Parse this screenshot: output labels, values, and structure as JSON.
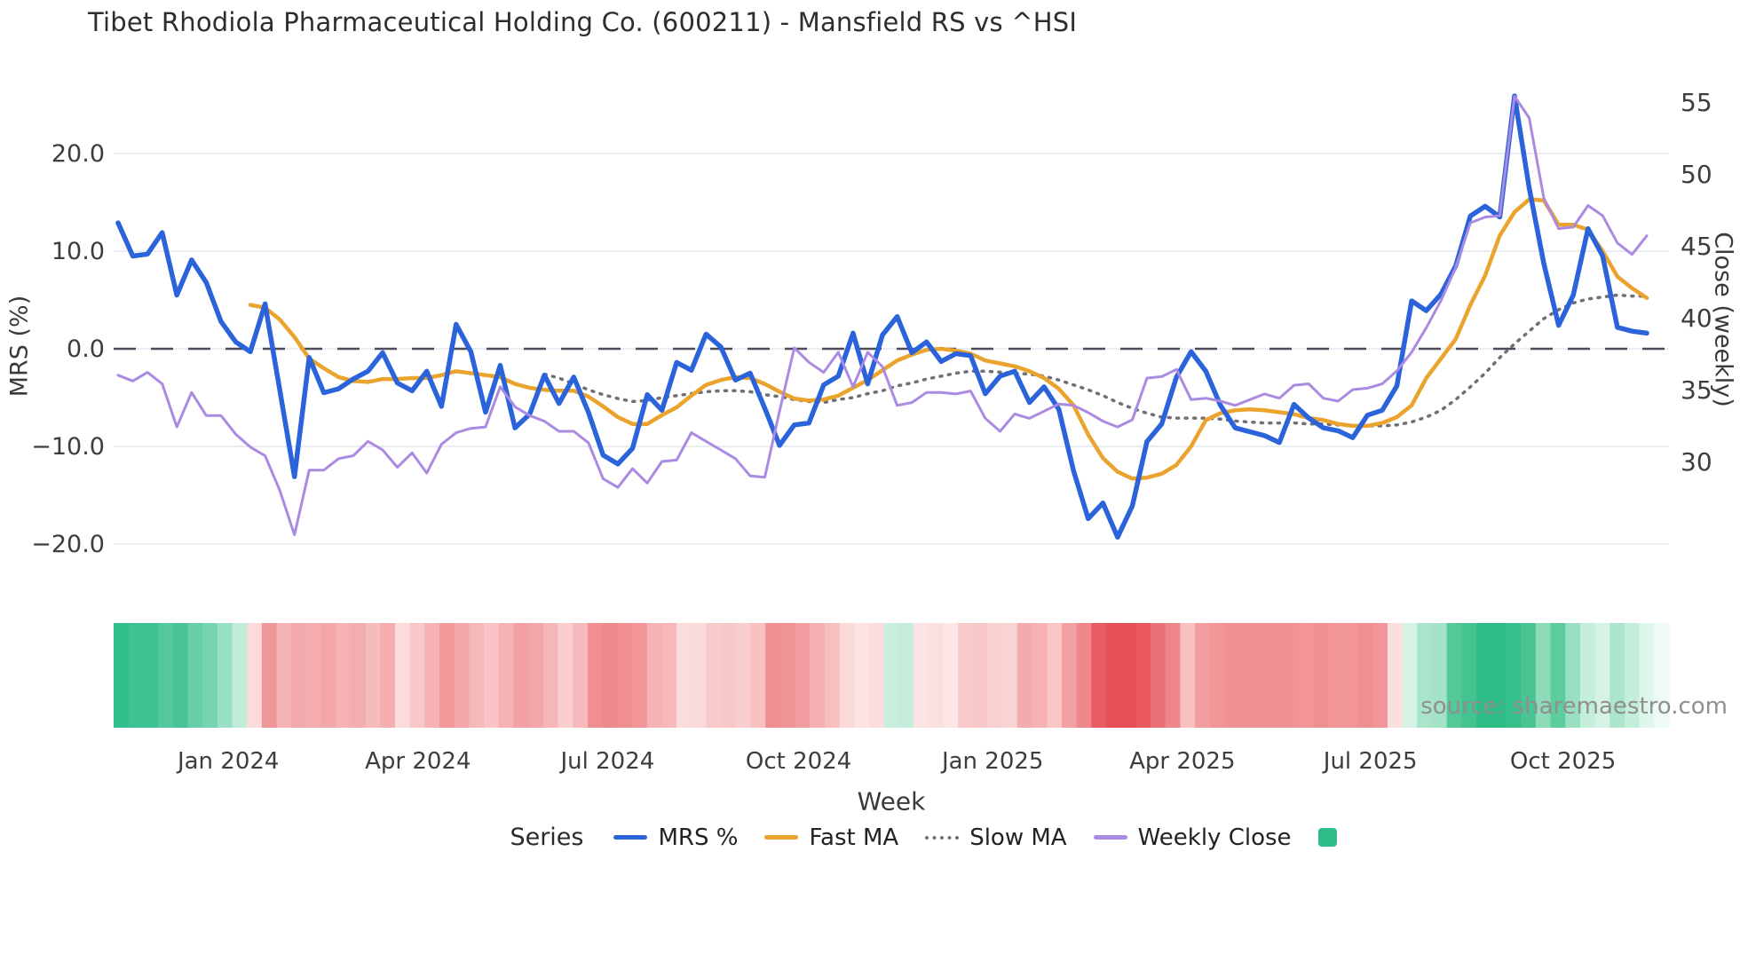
{
  "title": "Tibet Rhodiola Pharmaceutical Holding Co. (600211) - Mansfield RS vs ^HSI",
  "axes": {
    "left_label": "MRS (%)",
    "right_label": "Close (weekly)",
    "x_label": "Week"
  },
  "legend": {
    "series_label": "Series",
    "items": [
      {
        "label": "MRS %",
        "color": "#2b63da",
        "swatch": "line"
      },
      {
        "label": "Fast MA",
        "color": "#eaa42e",
        "swatch": "line"
      },
      {
        "label": "Slow MA",
        "color": "#73737d",
        "swatch": "dotted"
      },
      {
        "label": "Weekly Close",
        "color": "#ab8ae2",
        "swatch": "line"
      },
      {
        "label": "",
        "color": "#2ebd86",
        "swatch": "square"
      }
    ]
  },
  "source": "source: sharemaestro.com",
  "colors": {
    "grid": "#e9edf1",
    "zero_line": "#4b4b57",
    "tick_text": "#3d3d3d",
    "background": "#ffffff"
  },
  "chart_data": {
    "type": "line",
    "x_unit": "week",
    "n_weeks": 105,
    "x_tick_labels": [
      "Jan 2024",
      "Apr 2024",
      "Jul 2024",
      "Oct 2024",
      "Jan 2025",
      "Apr 2025",
      "Jul 2025",
      "Oct 2025"
    ],
    "x_tick_weeks": [
      7.5,
      20.4,
      33.3,
      46.3,
      59.5,
      72.4,
      85.2,
      98.3
    ],
    "left_axis": {
      "label": "MRS (%)",
      "ticks": [
        20,
        10,
        0,
        -10,
        -20
      ],
      "tick_labels": [
        "20.0",
        "10.0",
        "0.0",
        "−10.0",
        "−20.0"
      ],
      "range": [
        -24.3,
        28.9
      ],
      "zero_line": 0
    },
    "right_axis": {
      "label": "Close (weekly)",
      "ticks": [
        55,
        50,
        45,
        40,
        35,
        30
      ],
      "tick_labels": [
        "55",
        "50",
        "45",
        "40",
        "35",
        "30"
      ],
      "range": [
        21.4,
        57.5
      ]
    },
    "series": [
      {
        "name": "Slow MA",
        "axis": "left",
        "color": "#6f6f78",
        "width": 3.5,
        "dash": "2 7.5",
        "start_week": 29,
        "values": [
          -2.6,
          -3.0,
          -3.6,
          -4.2,
          -4.7,
          -5.1,
          -5.4,
          -5.3,
          -5.0,
          -4.8,
          -4.6,
          -4.4,
          -4.3,
          -4.3,
          -4.4,
          -4.7,
          -4.9,
          -5.2,
          -5.4,
          -5.5,
          -5.2,
          -5.0,
          -4.6,
          -4.3,
          -3.8,
          -3.5,
          -3.1,
          -2.8,
          -2.5,
          -2.3,
          -2.3,
          -2.4,
          -2.5,
          -2.6,
          -2.8,
          -3.2,
          -3.7,
          -4.2,
          -4.8,
          -5.5,
          -6.1,
          -6.6,
          -7.0,
          -7.1,
          -7.1,
          -7.1,
          -7.2,
          -7.4,
          -7.5,
          -7.6,
          -7.6,
          -7.6,
          -7.7,
          -7.7,
          -7.8,
          -7.9,
          -7.9,
          -7.9,
          -7.8,
          -7.5,
          -7.0,
          -6.3,
          -5.2,
          -3.9,
          -2.5,
          -0.9,
          0.5,
          1.8,
          3.1,
          4.0,
          4.7,
          5.1,
          5.3,
          5.5,
          5.4,
          5.4
        ]
      },
      {
        "name": "Fast MA",
        "axis": "left",
        "color": "#eaa42e",
        "width": 4.5,
        "dash": null,
        "start_week": 9,
        "values": [
          4.5,
          4.2,
          3.0,
          1.2,
          -1.0,
          -2.0,
          -2.9,
          -3.3,
          -3.4,
          -3.1,
          -3.1,
          -3.0,
          -3.0,
          -2.7,
          -2.3,
          -2.5,
          -2.7,
          -2.9,
          -3.6,
          -4.0,
          -4.2,
          -4.3,
          -4.3,
          -4.9,
          -5.9,
          -7.0,
          -7.7,
          -7.7,
          -6.8,
          -6.0,
          -4.8,
          -3.7,
          -3.2,
          -2.9,
          -3.0,
          -3.6,
          -4.4,
          -5.1,
          -5.3,
          -5.2,
          -4.8,
          -4.0,
          -3.2,
          -2.2,
          -1.2,
          -0.6,
          -0.1,
          0.0,
          -0.2,
          -0.5,
          -1.2,
          -1.5,
          -1.8,
          -2.3,
          -3.0,
          -4.1,
          -5.8,
          -8.8,
          -11.2,
          -12.6,
          -13.3,
          -13.2,
          -12.8,
          -11.9,
          -10.0,
          -7.3,
          -6.6,
          -6.3,
          -6.2,
          -6.3,
          -6.5,
          -6.7,
          -7.1,
          -7.3,
          -7.7,
          -7.9,
          -7.9,
          -7.6,
          -7.0,
          -5.8,
          -3.0,
          -1.0,
          1.0,
          4.5,
          7.5,
          11.6,
          14.0,
          15.3,
          15.2,
          12.7,
          12.7,
          12.2,
          10.0,
          7.4,
          6.2,
          5.2
        ]
      },
      {
        "name": "MRS %",
        "axis": "left",
        "color": "#2b63da",
        "width": 5.5,
        "dash": null,
        "start_week": 0,
        "values": [
          12.9,
          9.5,
          9.7,
          11.9,
          5.5,
          9.1,
          6.8,
          2.8,
          0.7,
          -0.3,
          4.6,
          -4.2,
          -13.1,
          -0.9,
          -4.5,
          -4.1,
          -3.1,
          -2.3,
          -0.4,
          -3.5,
          -4.3,
          -2.3,
          -5.9,
          2.5,
          -0.3,
          -6.5,
          -1.7,
          -8.1,
          -6.7,
          -2.7,
          -5.6,
          -2.9,
          -6.5,
          -10.9,
          -11.8,
          -10.2,
          -4.7,
          -6.3,
          -1.4,
          -2.2,
          1.5,
          0.2,
          -3.2,
          -2.5,
          -6.1,
          -9.9,
          -7.8,
          -7.6,
          -3.7,
          -2.8,
          1.6,
          -3.6,
          1.4,
          3.3,
          -0.4,
          0.7,
          -1.3,
          -0.5,
          -0.7,
          -4.6,
          -2.8,
          -2.3,
          -5.5,
          -3.9,
          -6.2,
          -12.5,
          -17.4,
          -15.8,
          -19.3,
          -16.1,
          -9.5,
          -7.7,
          -2.9,
          -0.3,
          -2.3,
          -5.8,
          -8.1,
          -8.5,
          -8.9,
          -9.6,
          -5.7,
          -7.1,
          -8.1,
          -8.4,
          -9.1,
          -6.8,
          -6.3,
          -3.8,
          4.9,
          3.9,
          5.6,
          8.5,
          13.6,
          14.6,
          13.5,
          25.9,
          16.5,
          8.7,
          2.4,
          5.5,
          12.3,
          9.5,
          2.2,
          1.8,
          1.6
        ]
      },
      {
        "name": "Weekly Close",
        "axis": "right",
        "color": "#ab8ae2",
        "width": 3,
        "dash": null,
        "start_week": 0,
        "values": [
          36.0,
          35.6,
          36.2,
          35.4,
          32.4,
          34.8,
          33.2,
          33.2,
          31.9,
          31.0,
          30.4,
          28.0,
          24.9,
          29.4,
          29.4,
          30.2,
          30.4,
          31.4,
          30.8,
          29.6,
          30.6,
          29.2,
          31.2,
          32.0,
          32.3,
          32.4,
          35.2,
          33.8,
          33.2,
          32.8,
          32.1,
          32.1,
          31.3,
          28.8,
          28.2,
          29.5,
          28.5,
          30.0,
          30.1,
          32.0,
          31.4,
          30.8,
          30.2,
          29.0,
          28.9,
          33.5,
          37.9,
          36.9,
          36.2,
          37.6,
          35.2,
          37.6,
          36.6,
          33.9,
          34.1,
          34.8,
          34.8,
          34.7,
          34.9,
          33.0,
          32.1,
          33.3,
          33.0,
          33.5,
          34.0,
          33.9,
          33.4,
          32.8,
          32.4,
          32.9,
          35.8,
          35.9,
          36.4,
          34.3,
          34.4,
          34.2,
          33.9,
          34.3,
          34.7,
          34.4,
          35.3,
          35.4,
          34.4,
          34.2,
          35.0,
          35.1,
          35.4,
          36.3,
          37.6,
          39.3,
          41.2,
          43.5,
          46.6,
          47.0,
          47.1,
          55.4,
          53.9,
          48.3,
          46.2,
          46.3,
          47.8,
          47.1,
          45.2,
          44.4,
          45.7
        ]
      }
    ],
    "heatmap_colors": [
      "#31bf8b",
      "#3dc292",
      "#3dc292",
      "#52c89c",
      "#46c496",
      "#67cfa8",
      "#77d4b1",
      "#9ae0c4",
      "#c0ecd9",
      "#fbdbdc",
      "#ee979a",
      "#f5b1b3",
      "#f3a9ab",
      "#f4adaf",
      "#f3a7a9",
      "#f5b1b3",
      "#f4adaf",
      "#f6bbbd",
      "#f4aeb0",
      "#fbdcdd",
      "#f8c6c7",
      "#f5b1b3",
      "#f1989b",
      "#f3a6a8",
      "#f6b8ba",
      "#f8c4c5",
      "#f5b1b3",
      "#f2a0a3",
      "#f3a6a8",
      "#f6b6b8",
      "#f9cecf",
      "#f6babc",
      "#ef8f92",
      "#ee8a8d",
      "#f08f92",
      "#f19598",
      "#f5b3b5",
      "#f6b8ba",
      "#fbdcdc",
      "#fadadb",
      "#f8caca",
      "#f8c8c9",
      "#f9cecf",
      "#f7c0c1",
      "#ef8f92",
      "#f09396",
      "#f29da0",
      "#f5b0b2",
      "#f7bfc0",
      "#fbd9d9",
      "#fce4e4",
      "#fbdddd",
      "#c9eedd",
      "#c4ecda",
      "#fce4e4",
      "#fbe0e0",
      "#fce6e6",
      "#f8caca",
      "#f8c8c9",
      "#f9d0d1",
      "#f9d2d2",
      "#f4abad",
      "#f5b1b3",
      "#f8c6c7",
      "#f2a0a2",
      "#ef878b",
      "#e85c61",
      "#e64f55",
      "#e64f55",
      "#e8585d",
      "#ec7177",
      "#ee868a",
      "#f7c0c1",
      "#f29da0",
      "#f19598",
      "#f09295",
      "#f09295",
      "#f09295",
      "#f09295",
      "#f09295",
      "#f19598",
      "#ef8f92",
      "#f19598",
      "#f19598",
      "#ef8f92",
      "#f19598",
      "#fbdfdf",
      "#d5f2e4",
      "#aae5cb",
      "#a5e3c8",
      "#55c898",
      "#43c390",
      "#2ebd86",
      "#2ebd86",
      "#35bf8a",
      "#4ac492",
      "#8edbba",
      "#5ecd9e",
      "#99dfc1",
      "#c3eeda",
      "#d5f2e4",
      "#ace5cb",
      "#c3eeda",
      "#def6ec",
      "#eefbf5"
    ]
  }
}
